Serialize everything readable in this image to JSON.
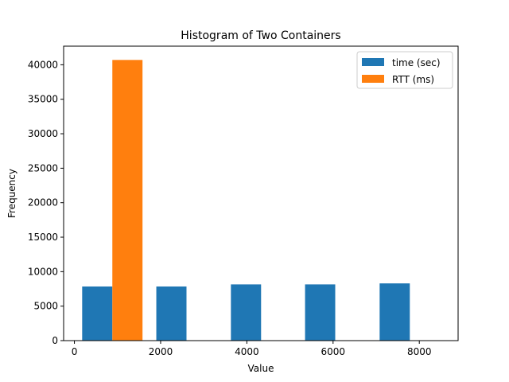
{
  "chart_data": {
    "type": "bar",
    "title": "Histogram of Two Containers",
    "xlabel": "Value",
    "ylabel": "Frequency",
    "xlim": [
      -250,
      8900
    ],
    "ylim": [
      0,
      42700
    ],
    "xticks": [
      0,
      2000,
      4000,
      6000,
      8000
    ],
    "yticks": [
      0,
      5000,
      10000,
      15000,
      20000,
      25000,
      30000,
      35000,
      40000
    ],
    "legend_position": "top-right",
    "grid": false,
    "series": [
      {
        "name": "time (sec)",
        "color": "#1f77b4",
        "bins": [
          {
            "x0": 180,
            "x1": 880,
            "value": 7850
          },
          {
            "x0": 1900,
            "x1": 2600,
            "value": 7850
          },
          {
            "x0": 3630,
            "x1": 4330,
            "value": 8150
          },
          {
            "x0": 5350,
            "x1": 6050,
            "value": 8150
          },
          {
            "x0": 7080,
            "x1": 7780,
            "value": 8300
          }
        ]
      },
      {
        "name": "RTT (ms)",
        "color": "#ff7f0e",
        "bins": [
          {
            "x0": 880,
            "x1": 1580,
            "value": 40700
          }
        ]
      }
    ]
  }
}
